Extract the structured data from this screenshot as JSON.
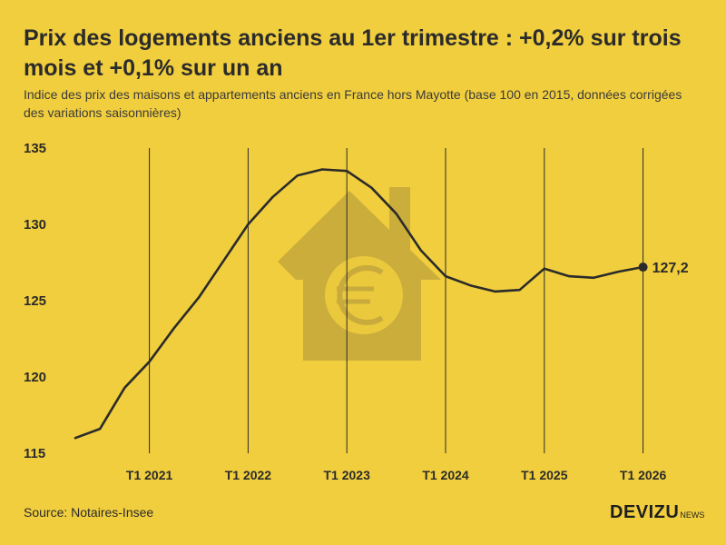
{
  "header": {
    "title": "Prix des logements anciens au 1er trimestre : +0,2% sur trois mois et +0,1% sur un an",
    "subtitle": "Indice des prix des maisons et appartements anciens en France hors Mayotte (base 100 en 2015, données corrigées des variations saisonnières)"
  },
  "footer": {
    "source": "Source: Notaires-Insee",
    "brand": "DEVIZU",
    "brand_suffix": "NEWS"
  },
  "colors": {
    "background": "#f1ce3d",
    "line": "#2b2b2b",
    "illustration": "#c8ab3c"
  },
  "illustration": {
    "icon": "house-euro-icon"
  },
  "chart_data": {
    "type": "line",
    "title": "Prix des logements anciens au 1er trimestre : +0,2% sur trois mois et +0,1% sur un an",
    "xlabel": "",
    "ylabel": "",
    "ylim": [
      115,
      135
    ],
    "yticks": [
      "135",
      "130",
      "125",
      "120",
      "115"
    ],
    "xticks": [
      "T1 2021",
      "T1 2022",
      "T1 2023",
      "T1 2024",
      "T1 2025",
      "T1 2026"
    ],
    "vertical_gridlines": true,
    "horizontal_gridlines": false,
    "x": [
      "T2 2020",
      "T3 2020",
      "T4 2020",
      "T1 2021",
      "T2 2021",
      "T3 2021",
      "T4 2021",
      "T1 2022",
      "T2 2022",
      "T3 2022",
      "T4 2022",
      "T1 2023",
      "T2 2023",
      "T3 2023",
      "T4 2023",
      "T1 2024",
      "T2 2024",
      "T3 2024",
      "T4 2024",
      "T1 2025",
      "T2 2025",
      "T3 2025",
      "T4 2025",
      "T1 2026"
    ],
    "series": [
      {
        "values": [
          116.0,
          116.6,
          119.3,
          121.0,
          123.2,
          125.2,
          127.6,
          130.0,
          131.8,
          133.2,
          133.6,
          133.5,
          132.4,
          130.7,
          128.3,
          126.6,
          126.0,
          125.6,
          125.7,
          127.1,
          126.6,
          126.5,
          126.9,
          127.2
        ]
      }
    ],
    "last_value_label": "127,2"
  }
}
